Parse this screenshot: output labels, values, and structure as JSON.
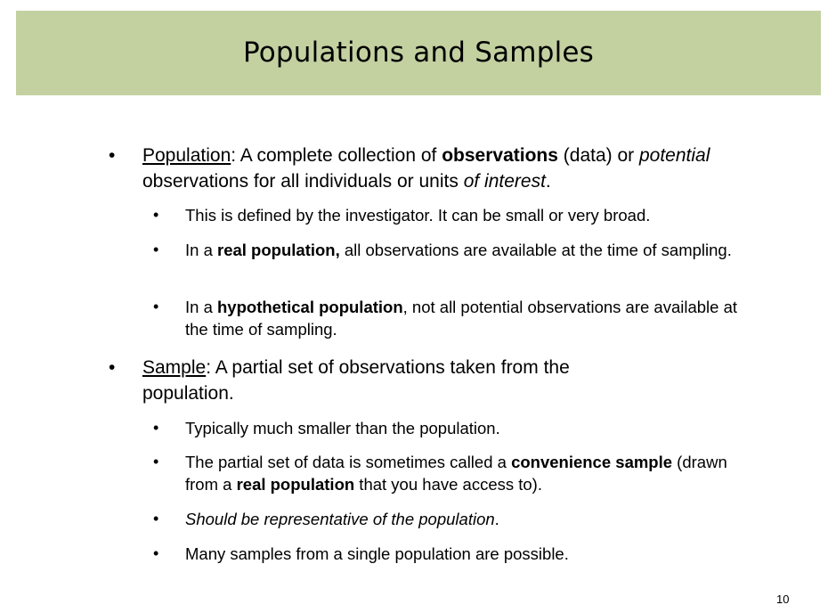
{
  "slide": {
    "title": "Populations and Samples",
    "page_number": "10"
  },
  "bullets": {
    "population": {
      "term": "Population",
      "t1": ": A complete collection of ",
      "t2": "observations",
      "t3": " (data) or ",
      "t4": "potential",
      "t5": " observations for all individuals or units ",
      "t6": "of interest",
      "t7": ".",
      "sub": {
        "s1": "This is defined by the investigator. It can be small or very broad.",
        "s2a": "In a ",
        "s2b": "real population,",
        "s2c": " all observations are available at the time of sampling.",
        "s3a": "In a ",
        "s3b": "hypothetical population",
        "s3c": ", not all potential observations are available at the time of sampling."
      }
    },
    "sample": {
      "term": "Sample",
      "t1": ": A partial set of observations taken from the population.",
      "sub": {
        "s1": "Typically much smaller than the population.",
        "s2a": "The partial set of data is sometimes called a ",
        "s2b": "convenience sample",
        "s2c": " (drawn from a ",
        "s2d": "real population",
        "s2e": " that you have access to).",
        "s3": "Should be representative of the population",
        "s3end": ".",
        "s4": "Many samples from a single population are possible."
      }
    },
    "bullet_char": "•"
  }
}
